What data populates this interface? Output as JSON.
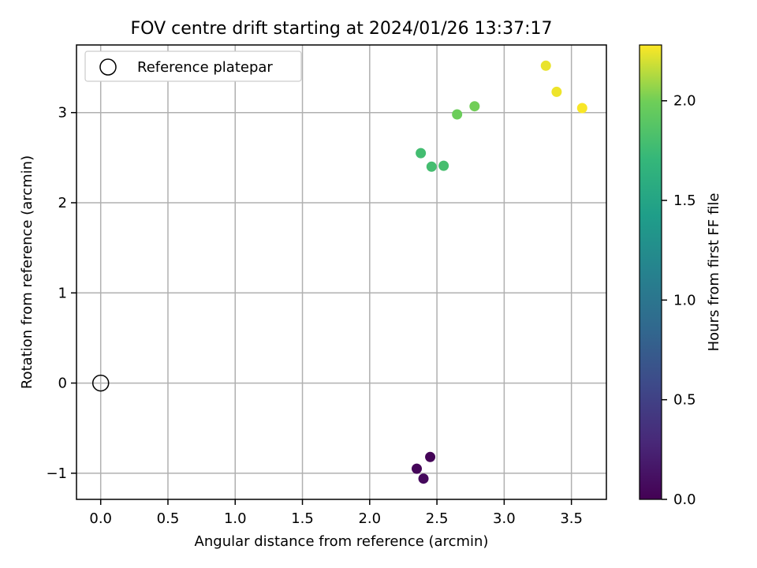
{
  "chart_data": {
    "type": "scatter",
    "title": "FOV centre drift starting at 2024/01/26 13:37:17",
    "xlabel": "Angular distance from reference (arcmin)",
    "ylabel": "Rotation from reference (arcmin)",
    "xlim": [
      -0.18,
      3.76
    ],
    "ylim": [
      -1.29,
      3.75
    ],
    "xticks": [
      0.0,
      0.5,
      1.0,
      1.5,
      2.0,
      2.5,
      3.0,
      3.5
    ],
    "xtick_labels": [
      "0.0",
      "0.5",
      "1.0",
      "1.5",
      "2.0",
      "2.5",
      "3.0",
      "3.5"
    ],
    "yticks": [
      -1,
      0,
      1,
      2,
      3
    ],
    "ytick_labels": [
      "−1",
      "0",
      "1",
      "2",
      "3"
    ],
    "grid": true,
    "legend": {
      "placement": "upper-left",
      "entries": [
        {
          "label": "Reference platepar",
          "marker": "open-circle",
          "color": "#000000"
        }
      ]
    },
    "reference_point": {
      "x": 0.0,
      "y": 0.0
    },
    "colorbar": {
      "label": "Hours from first FF file",
      "colormap": "viridis",
      "range": [
        0.0,
        2.28
      ],
      "ticks": [
        0.0,
        0.5,
        1.0,
        1.5,
        2.0
      ],
      "tick_labels": [
        "0.0",
        "0.5",
        "1.0",
        "1.5",
        "2.0"
      ]
    },
    "points": [
      {
        "x": 2.45,
        "y": -0.82,
        "hours": 0.02
      },
      {
        "x": 2.35,
        "y": -0.95,
        "hours": 0.04
      },
      {
        "x": 2.4,
        "y": -1.06,
        "hours": 0.06
      },
      {
        "x": 2.38,
        "y": 2.55,
        "hours": 1.78
      },
      {
        "x": 2.46,
        "y": 2.4,
        "hours": 1.79
      },
      {
        "x": 2.55,
        "y": 2.41,
        "hours": 1.8
      },
      {
        "x": 2.65,
        "y": 2.98,
        "hours": 1.98
      },
      {
        "x": 2.78,
        "y": 3.07,
        "hours": 2.0
      },
      {
        "x": 3.31,
        "y": 3.52,
        "hours": 2.24
      },
      {
        "x": 3.39,
        "y": 3.23,
        "hours": 2.25
      },
      {
        "x": 3.58,
        "y": 3.05,
        "hours": 2.27
      }
    ]
  }
}
